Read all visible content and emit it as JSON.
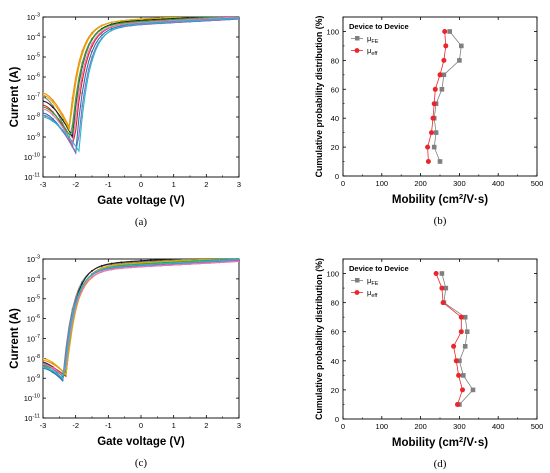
{
  "chart_data": [
    {
      "type": "line",
      "caption": "(a)",
      "xlabel": "Gate voltage (V)",
      "ylabel": "Current (A)",
      "xlim": [
        -3,
        3
      ],
      "ylim_log10": [
        -11,
        -3
      ],
      "x_ticks": [
        "-3",
        "-2",
        "-1",
        "0",
        "1",
        "2",
        "3"
      ],
      "y_ticks": [
        {
          "base": "10",
          "exp": "-3"
        },
        {
          "base": "10",
          "exp": "-4"
        },
        {
          "base": "10",
          "exp": "-5"
        },
        {
          "base": "10",
          "exp": "-6"
        },
        {
          "base": "10",
          "exp": "-7"
        },
        {
          "base": "10",
          "exp": "-8"
        },
        {
          "base": "10",
          "exp": "-9"
        },
        {
          "base": "10",
          "exp": "-10"
        },
        {
          "base": "10",
          "exp": "-11"
        }
      ],
      "curve_model": {
        "x_min_range": [
          -2.2,
          -1.9
        ],
        "n_curves": 10
      },
      "series_colors": [
        "#7f7f7f",
        "#1a1a1a",
        "#e41a1c",
        "#1f77b4",
        "#ff7f0e",
        "#2ca02c",
        "#9467bd",
        "#d4b000",
        "#e377c2",
        "#17becf"
      ],
      "series": [
        {
          "x_min": -2.15,
          "min_log": -9.3,
          "left_log": -7.0,
          "on_log": -3.4
        },
        {
          "x_min": -2.1,
          "min_log": -9.0,
          "left_log": -7.2,
          "on_log": -3.35
        },
        {
          "x_min": -2.05,
          "min_log": -9.6,
          "left_log": -7.4,
          "on_log": -3.45
        },
        {
          "x_min": -2.0,
          "min_log": -9.8,
          "left_log": -7.8,
          "on_log": -3.5
        },
        {
          "x_min": -2.2,
          "min_log": -8.5,
          "left_log": -6.8,
          "on_log": -3.3
        },
        {
          "x_min": -2.12,
          "min_log": -9.1,
          "left_log": -7.5,
          "on_log": -3.4
        },
        {
          "x_min": -1.95,
          "min_log": -9.9,
          "left_log": -7.9,
          "on_log": -3.55
        },
        {
          "x_min": -2.18,
          "min_log": -8.7,
          "left_log": -6.9,
          "on_log": -3.3
        },
        {
          "x_min": -2.08,
          "min_log": -9.4,
          "left_log": -7.6,
          "on_log": -3.45
        },
        {
          "x_min": -1.9,
          "min_log": -9.7,
          "left_log": -8.0,
          "on_log": -3.5
        }
      ]
    },
    {
      "type": "scatter",
      "caption": "(b)",
      "xlabel": "Mobility (cm2/V·s)",
      "xlabel_parts": {
        "pre": "Mobility (cm",
        "sup": "2",
        "post": "/V·s)"
      },
      "ylabel": "Cumulative probability distribution (%)",
      "xlim": [
        0,
        500
      ],
      "ylim": [
        0,
        110
      ],
      "x_ticks": [
        "0",
        "100",
        "200",
        "300",
        "400",
        "500"
      ],
      "y_ticks": [
        "0",
        "20",
        "40",
        "60",
        "80",
        "100"
      ],
      "legend": {
        "title": "Device to Device",
        "position": "top-left"
      },
      "series": [
        {
          "name": "μFE",
          "name_base": "μ",
          "name_sub": "FE",
          "color": "#7f7f7f",
          "marker": "square",
          "x": [
            250,
            235,
            240,
            235,
            240,
            255,
            260,
            300,
            305,
            275
          ],
          "y": [
            10,
            20,
            30,
            40,
            50,
            60,
            70,
            80,
            90,
            100
          ]
        },
        {
          "name": "μeff",
          "name_base": "μ",
          "name_sub": "eff",
          "color": "#e8262b",
          "marker": "circle",
          "x": [
            220,
            218,
            228,
            232,
            235,
            238,
            250,
            260,
            265,
            262
          ],
          "y": [
            10,
            20,
            30,
            40,
            50,
            60,
            70,
            80,
            90,
            100
          ]
        }
      ]
    },
    {
      "type": "line",
      "caption": "(c)",
      "xlabel": "Gate voltage (V)",
      "ylabel": "Current (A)",
      "xlim": [
        -3,
        3
      ],
      "ylim_log10": [
        -11,
        -3
      ],
      "x_ticks": [
        "-3",
        "-2",
        "-1",
        "0",
        "1",
        "2",
        "3"
      ],
      "y_ticks": [
        {
          "base": "10",
          "exp": "-3"
        },
        {
          "base": "10",
          "exp": "-4"
        },
        {
          "base": "10",
          "exp": "-5"
        },
        {
          "base": "10",
          "exp": "-6"
        },
        {
          "base": "10",
          "exp": "-7"
        },
        {
          "base": "10",
          "exp": "-8"
        },
        {
          "base": "10",
          "exp": "-9"
        },
        {
          "base": "10",
          "exp": "-10"
        },
        {
          "base": "10",
          "exp": "-11"
        }
      ],
      "series_colors": [
        "#7f7f7f",
        "#1a1a1a",
        "#e41a1c",
        "#1f77b4",
        "#ff7f0e",
        "#2ca02c",
        "#9467bd",
        "#d4b000",
        "#e377c2",
        "#17becf"
      ],
      "series": [
        {
          "x_min": -2.4,
          "min_log": -9.1,
          "left_log": -8.4,
          "on_log": -3.35
        },
        {
          "x_min": -2.35,
          "min_log": -9.0,
          "left_log": -8.2,
          "on_log": -3.3
        },
        {
          "x_min": -2.3,
          "min_log": -8.9,
          "left_log": -8.3,
          "on_log": -3.4
        },
        {
          "x_min": -2.35,
          "min_log": -9.2,
          "left_log": -8.5,
          "on_log": -3.5
        },
        {
          "x_min": -2.3,
          "min_log": -8.8,
          "left_log": -8.1,
          "on_log": -3.6
        },
        {
          "x_min": -2.32,
          "min_log": -9.0,
          "left_log": -8.35,
          "on_log": -3.45
        },
        {
          "x_min": -2.38,
          "min_log": -9.1,
          "left_log": -8.25,
          "on_log": -3.55
        },
        {
          "x_min": -2.28,
          "min_log": -8.85,
          "left_log": -8.0,
          "on_log": -3.4
        },
        {
          "x_min": -2.33,
          "min_log": -8.95,
          "left_log": -8.3,
          "on_log": -3.6
        },
        {
          "x_min": -2.36,
          "min_log": -9.05,
          "left_log": -8.45,
          "on_log": -3.5
        }
      ]
    },
    {
      "type": "scatter",
      "caption": "(d)",
      "xlabel": "Mobility (cm2/V·s)",
      "xlabel_parts": {
        "pre": "Mobility (cm",
        "sup": "2",
        "post": "/V·s)"
      },
      "ylabel": "Cumulative probability distribution (%)",
      "xlim": [
        0,
        500
      ],
      "ylim": [
        0,
        110
      ],
      "x_ticks": [
        "0",
        "100",
        "200",
        "300",
        "400",
        "500"
      ],
      "y_ticks": [
        "0",
        "20",
        "40",
        "60",
        "80",
        "100"
      ],
      "legend": {
        "title": "Device to Device",
        "position": "top-left"
      },
      "series": [
        {
          "name": "μFE",
          "name_base": "μ",
          "name_sub": "FE",
          "color": "#7f7f7f",
          "marker": "square",
          "x": [
            300,
            335,
            310,
            300,
            315,
            320,
            315,
            260,
            265,
            255
          ],
          "y": [
            10,
            20,
            30,
            40,
            50,
            60,
            70,
            80,
            90,
            100
          ]
        },
        {
          "name": "μeff",
          "name_base": "μ",
          "name_sub": "eff",
          "color": "#e8262b",
          "marker": "circle",
          "x": [
            295,
            308,
            298,
            292,
            285,
            305,
            305,
            258,
            255,
            240
          ],
          "y": [
            10,
            20,
            30,
            40,
            50,
            60,
            70,
            80,
            90,
            100
          ]
        }
      ]
    }
  ]
}
